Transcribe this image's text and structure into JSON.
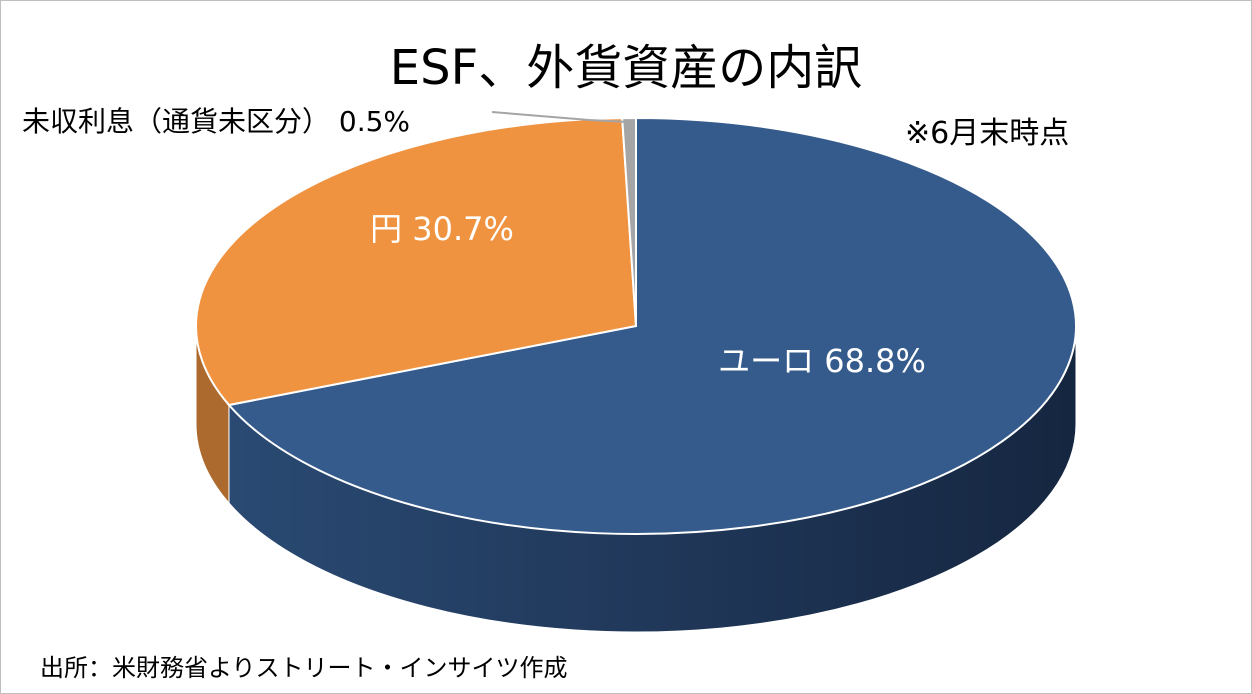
{
  "chart_data": {
    "type": "pie",
    "title": "ESF、外貨資産の内訳",
    "note": "※6月末時点",
    "source": "出所：米財務省よりストリート・インサイツ作成",
    "slices": [
      {
        "label": "ユーロ",
        "value": 68.8,
        "display": "ユーロ 68.8%",
        "color": "#355b8c"
      },
      {
        "label": "円",
        "value": 30.7,
        "display": "円 30.7%",
        "color": "#f09341"
      },
      {
        "label": "未収利息（通貨未区分）",
        "value": 0.5,
        "display": "未収利息（通貨未区分） 0.5%",
        "color": "#a5a5a5"
      }
    ]
  }
}
